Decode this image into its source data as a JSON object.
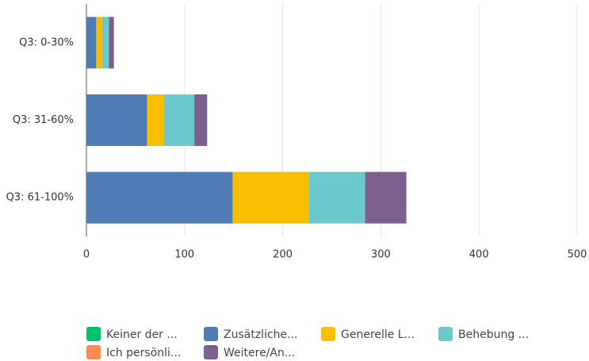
{
  "chart_data": {
    "type": "stacked_barh",
    "categories": [
      "Q3: 0-30%",
      "Q3: 31-60%",
      "Q3: 61-100%"
    ],
    "series": [
      {
        "name": "Keiner der ...",
        "color": "#00bf6f",
        "values": [
          0,
          0,
          0
        ]
      },
      {
        "name": "Zusätzliche...",
        "color": "#507cb6",
        "values": [
          10,
          62,
          149
        ]
      },
      {
        "name": "Generelle L...",
        "color": "#f9be00",
        "values": [
          6,
          17,
          78
        ]
      },
      {
        "name": "Behebung ...",
        "color": "#6bc8cd",
        "values": [
          7,
          31,
          57
        ]
      },
      {
        "name": "Ich persönli...",
        "color": "#ff8b4f",
        "values": [
          0,
          0,
          0
        ]
      },
      {
        "name": "Weitere/An...",
        "color": "#7d5e90",
        "values": [
          5,
          13,
          42
        ]
      }
    ],
    "xlim": [
      0,
      500
    ],
    "xticks": [
      0,
      100,
      200,
      300,
      400,
      500
    ],
    "grid": true,
    "legend": "bottom"
  }
}
